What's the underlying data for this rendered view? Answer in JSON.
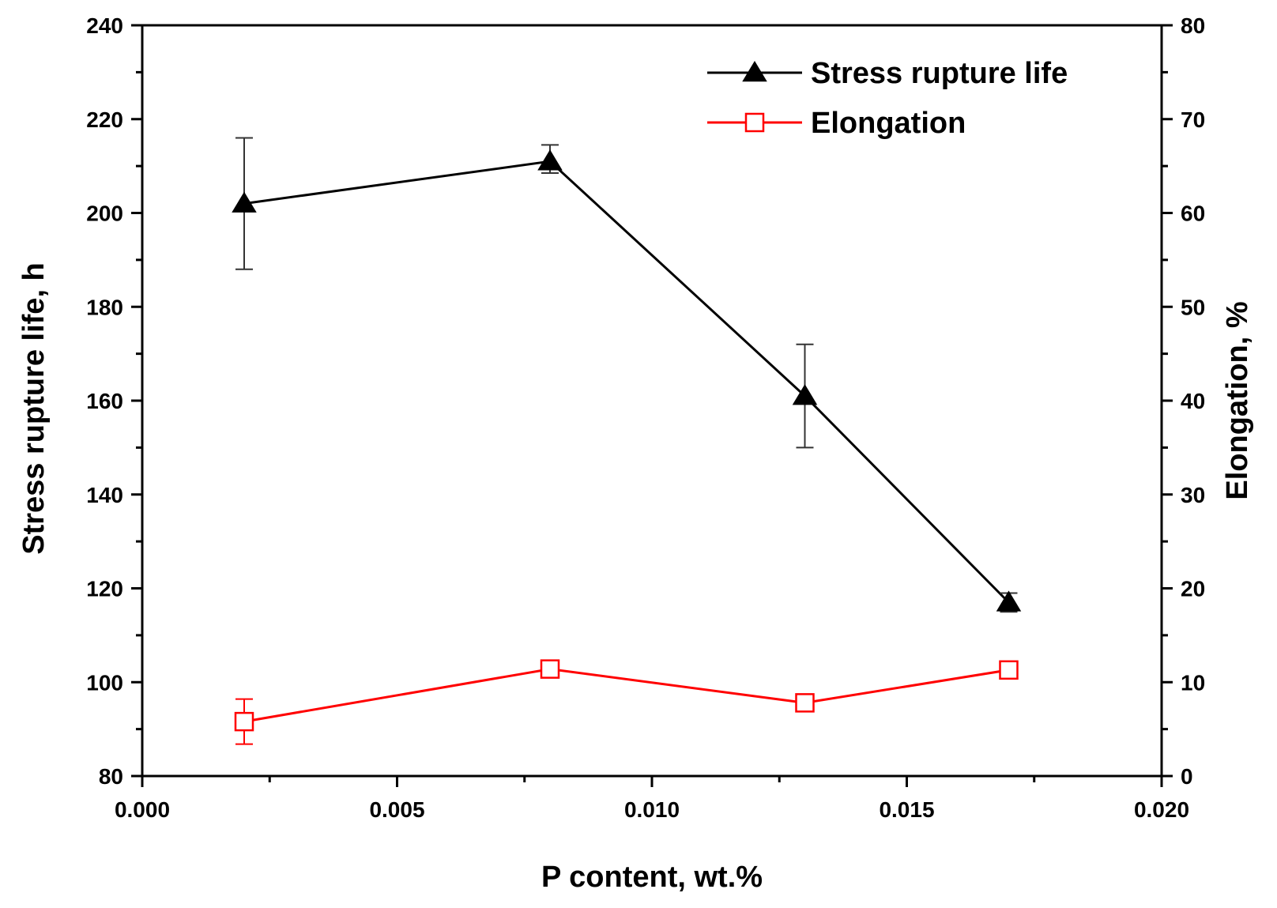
{
  "chart_data": {
    "type": "line",
    "title": "",
    "xlabel": "P content, wt.%",
    "ylabel": "Stress rupture life, h",
    "y2label": "Elongation, %",
    "xlim": [
      0.0,
      0.02
    ],
    "ylim": [
      80,
      240
    ],
    "y2lim": [
      0,
      80
    ],
    "x_ticks": [
      "0.000",
      "0.005",
      "0.010",
      "0.015",
      "0.020"
    ],
    "y_ticks": [
      "80",
      "100",
      "120",
      "140",
      "160",
      "180",
      "200",
      "220",
      "240"
    ],
    "y2_ticks": [
      "0",
      "10",
      "20",
      "30",
      "40",
      "50",
      "60",
      "70",
      "80"
    ],
    "legend_position": "top-right",
    "series": [
      {
        "name": "Stress rupture life",
        "axis": "left",
        "color": "#000000",
        "marker": "filled-triangle",
        "x": [
          0.002,
          0.008,
          0.013,
          0.017
        ],
        "values": [
          202,
          211,
          161,
          117
        ],
        "err_low": [
          188,
          208.5,
          150,
          115
        ],
        "err_high": [
          216,
          214.5,
          172,
          119
        ]
      },
      {
        "name": "Elongation",
        "axis": "right",
        "color": "#ff0000",
        "marker": "open-square",
        "x": [
          0.002,
          0.008,
          0.013,
          0.017
        ],
        "values": [
          5.8,
          11.4,
          7.8,
          11.3
        ],
        "err_low": [
          3.4,
          11.0,
          7.5,
          10.9
        ],
        "err_high": [
          8.2,
          11.8,
          8.1,
          11.7
        ]
      }
    ]
  }
}
